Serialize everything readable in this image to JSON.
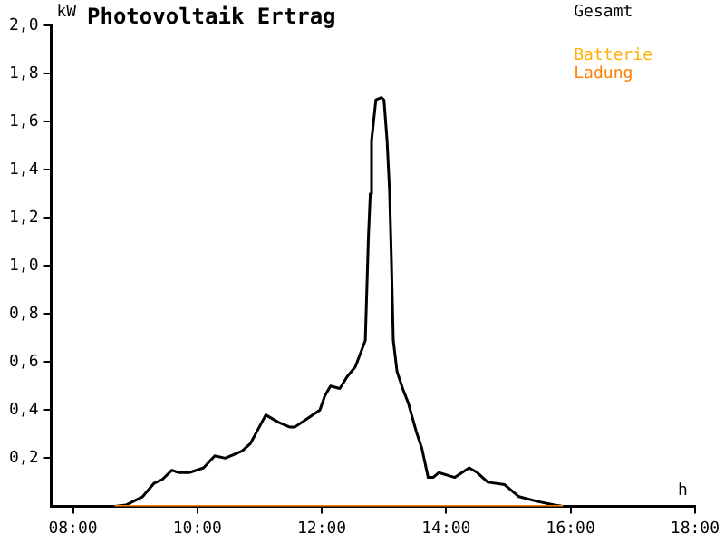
{
  "chart_data": {
    "type": "line",
    "title": "Photovoltaik Ertrag",
    "ylabel": "kW",
    "xlabel": "h",
    "xlim": [
      7.65,
      18
    ],
    "xticks": [
      {
        "value": 8,
        "label": "08:00"
      },
      {
        "value": 10,
        "label": "10:00"
      },
      {
        "value": 12,
        "label": "12:00"
      },
      {
        "value": 14,
        "label": "14:00"
      },
      {
        "value": 16,
        "label": "16:00"
      },
      {
        "value": 18,
        "label": "18:00"
      }
    ],
    "ylim": [
      0,
      2
    ],
    "yticks": [
      {
        "value": 0.2,
        "label": "0,2"
      },
      {
        "value": 0.4,
        "label": "0,4"
      },
      {
        "value": 0.6,
        "label": "0,6"
      },
      {
        "value": 0.8,
        "label": "0,8"
      },
      {
        "value": 1,
        "label": "1,0"
      },
      {
        "value": 1.2,
        "label": "1,2"
      },
      {
        "value": 1.4,
        "label": "1,4"
      },
      {
        "value": 1.6,
        "label": "1,6"
      },
      {
        "value": 1.8,
        "label": "1,8"
      },
      {
        "value": 2,
        "label": "2,0"
      }
    ],
    "grid": false,
    "legend": "top right",
    "marker": "none",
    "line_style": "solid",
    "series": [
      {
        "name": "Gesamt",
        "color": "#000000",
        "x": [
          8.67,
          8.85,
          9.12,
          9.3,
          9.43,
          9.59,
          9.7,
          9.87,
          10.1,
          10.28,
          10.45,
          10.72,
          10.85,
          11.1,
          11.3,
          11.48,
          11.57,
          11.74,
          11.97,
          12.05,
          12.14,
          12.29,
          12.41,
          12.54,
          12.7,
          12.75,
          12.78,
          12.8,
          12.87,
          12.96,
          13.0,
          13.05,
          13.09,
          13.12,
          13.15,
          13.21,
          13.3,
          13.39,
          13.52,
          13.61,
          13.71,
          13.79,
          13.88,
          14.14,
          14.37,
          14.5,
          14.67,
          14.94,
          15.17,
          15.47,
          15.74,
          15.88
        ],
        "values": [
          0,
          0.005,
          0.04,
          0.095,
          0.11,
          0.15,
          0.14,
          0.14,
          0.16,
          0.21,
          0.2,
          0.23,
          0.26,
          0.38,
          0.35,
          0.33,
          0.33,
          0.36,
          0.4,
          0.46,
          0.5,
          0.49,
          0.54,
          0.58,
          0.69,
          1.12,
          1.3,
          1.52,
          1.69,
          1.7,
          1.69,
          1.52,
          1.31,
          1.02,
          0.69,
          0.56,
          0.49,
          0.43,
          0.31,
          0.24,
          0.12,
          0.12,
          0.14,
          0.12,
          0.16,
          0.14,
          0.1,
          0.09,
          0.04,
          0.02,
          0.005,
          0
        ]
      },
      {
        "name": "Batterie",
        "color": "#ffb000"
      },
      {
        "name": "Ladung",
        "color": "#ff8000",
        "x": [
          8.67,
          15.88
        ],
        "values": [
          0,
          0
        ]
      }
    ]
  }
}
